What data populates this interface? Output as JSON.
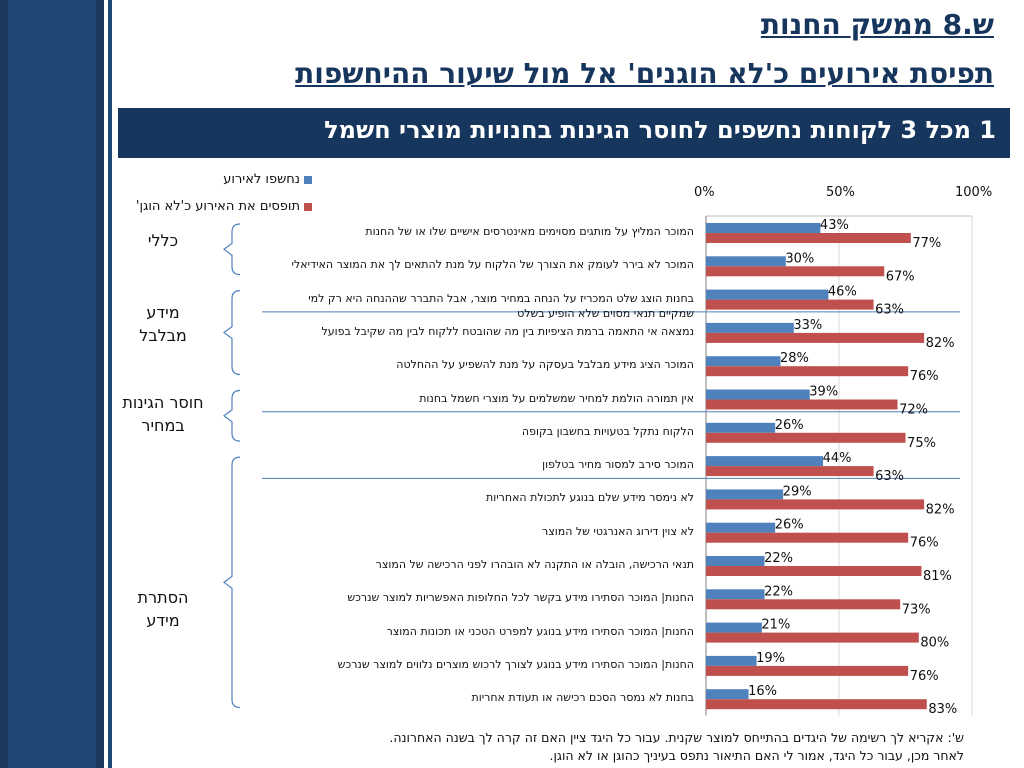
{
  "header": {
    "title_line1": "ש.8 ממשק החנות",
    "title_line2": "תפיסת אירועים כ'לא הוגנים' אל מול שיעור ההיחשפות",
    "banner": "1 מכל 3 לקוחות נחשפים לחוסר הגינות בחנויות מוצרי חשמל"
  },
  "groups": [
    {
      "label": "כללי"
    },
    {
      "label": "מידע מבלבל"
    },
    {
      "label": "חוסר הגינות במחיר"
    },
    {
      "label": "הסתרת מידע"
    }
  ],
  "footnote": {
    "line1": "ש': אקריא לך רשימה של היגדים בהתייחס למוצר שקנית.  עבור כל היגד ציין האם זה קרה לך בשנה האחרונה.",
    "line2": "לאחר מכן, עבור כל היגד, אמור לי האם התיאור נתפס בעיניך כהוגן או לא הוגן."
  },
  "colors": {
    "exposed": "#4f81bd",
    "unfair": "#c0504d",
    "sidebar": "#1f4877",
    "title": "#17365d"
  },
  "chart_data": {
    "type": "bar",
    "orientation": "horizontal",
    "x_ticks": [
      "0%",
      "50%",
      "100%"
    ],
    "xlim": [
      0,
      100
    ],
    "legend_placement": "top-left",
    "categories": [
      "המוכר המליץ על מותגים מסוימים מאינטרסים אישיים שלו או של החנות",
      "המוכר לא בירר לעומק את הצורך של הלקוח על מנת להתאים לך את המוצר האידיאלי",
      "בחנות הוצג שלט המכריז על הנחה במחיר מוצר, אבל התברר שההנחה היא רק למי שמקיים תנאי מסוים שלא הופיע בשלט",
      "נמצאה אי התאמה ברמת הציפיות בין מה שהובטח ללקוח לבין מה שקיבל בפועל",
      "המוכר הציג מידע מבלבל בעסקה על מנת להשפיע על ההחלטה",
      "אין תמורה הולמת למחיר שמשלמים על מוצרי חשמל בחנות",
      "הלקוח נתקל בטעויות בחשבון בקופה",
      "המוכר סירב למסור מחיר בטלפון",
      "לא נימסר מידע שלם בנוגע לתכולת האחריות",
      "לא צוין דירוג האנרגטי של המוצר",
      "תנאי הרכישה, הובלה או התקנה לא הובהרו לפני הרכישה של המוצר",
      "החנות| המוכר הסתירו מידע בקשר לכל החלופות האפשריות למוצר שנרכש",
      "החנות| המוכר הסתירו מידע בנוגע למפרט הטכני או תכונות המוצר",
      "החנות| המוכר הסתירו מידע בנוגע לצורך לרכוש מוצרים נלווים למוצר שנרכש",
      "בחנות לא נמסר הסכם רכישה או תעודת אחריות"
    ],
    "series": [
      {
        "name": "נחשפו לאירוע",
        "values": [
          43,
          30,
          46,
          33,
          28,
          39,
          26,
          44,
          29,
          26,
          22,
          22,
          21,
          19,
          16
        ],
        "labels": [
          "43%",
          "30%",
          "46%",
          "33%",
          "28%",
          "39%",
          "26%",
          "44%",
          "29%",
          "26%",
          "22%",
          "22%",
          "21%",
          "19%",
          "16%"
        ]
      },
      {
        "name": "תופסים את האירוע כ'לא הוגן'",
        "values": [
          77,
          67,
          63,
          82,
          76,
          72,
          75,
          63,
          82,
          76,
          81,
          73,
          80,
          76,
          83
        ],
        "labels": [
          "77%",
          "67%",
          "63%",
          "82%",
          "76%",
          "72%",
          "75%",
          "63%",
          "82%",
          "76%",
          "81%",
          "73%",
          "80%",
          "76%",
          "83%"
        ]
      }
    ]
  }
}
